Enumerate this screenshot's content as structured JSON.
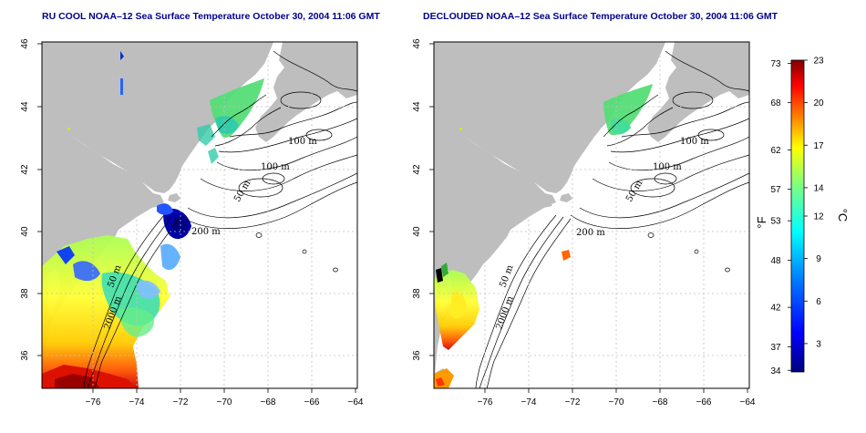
{
  "panels": [
    {
      "id": "left",
      "title": "RU COOL NOAA–12 Sea Surface Temperature October 30, 2004 11:06 GMT"
    },
    {
      "id": "right",
      "title": "DECLOUDED NOAA–12 Sea Surface Temperature October 30, 2004 11:06 GMT"
    }
  ],
  "axes": {
    "x_ticks": [
      "−76",
      "−74",
      "−72",
      "−70",
      "−68",
      "−66",
      "−64"
    ],
    "y_ticks": [
      "36",
      "38",
      "40",
      "42",
      "44",
      "46"
    ]
  },
  "isobaths": [
    "100 m",
    "100 m",
    "50 m",
    "200 m",
    "50 m",
    "2000 m"
  ],
  "colorbar": {
    "fahrenheit_label": "°F",
    "celsius_label": "°C",
    "fahrenheit_ticks": [
      "73",
      "68",
      "62",
      "57",
      "53",
      "48",
      "42",
      "37",
      "34"
    ],
    "celsius_ticks": [
      "23",
      "20",
      "17",
      "14",
      "12",
      "9",
      "6",
      "3"
    ],
    "range_c": [
      1,
      23
    ],
    "colors": [
      "#00007f",
      "#0000ff",
      "#007fff",
      "#00ffff",
      "#7fff7f",
      "#ffff00",
      "#ff7f00",
      "#ff0000",
      "#7f0000"
    ]
  },
  "colors": {
    "land": "#bebebe",
    "grid": "#c0c0c0",
    "title": "#00008b"
  }
}
